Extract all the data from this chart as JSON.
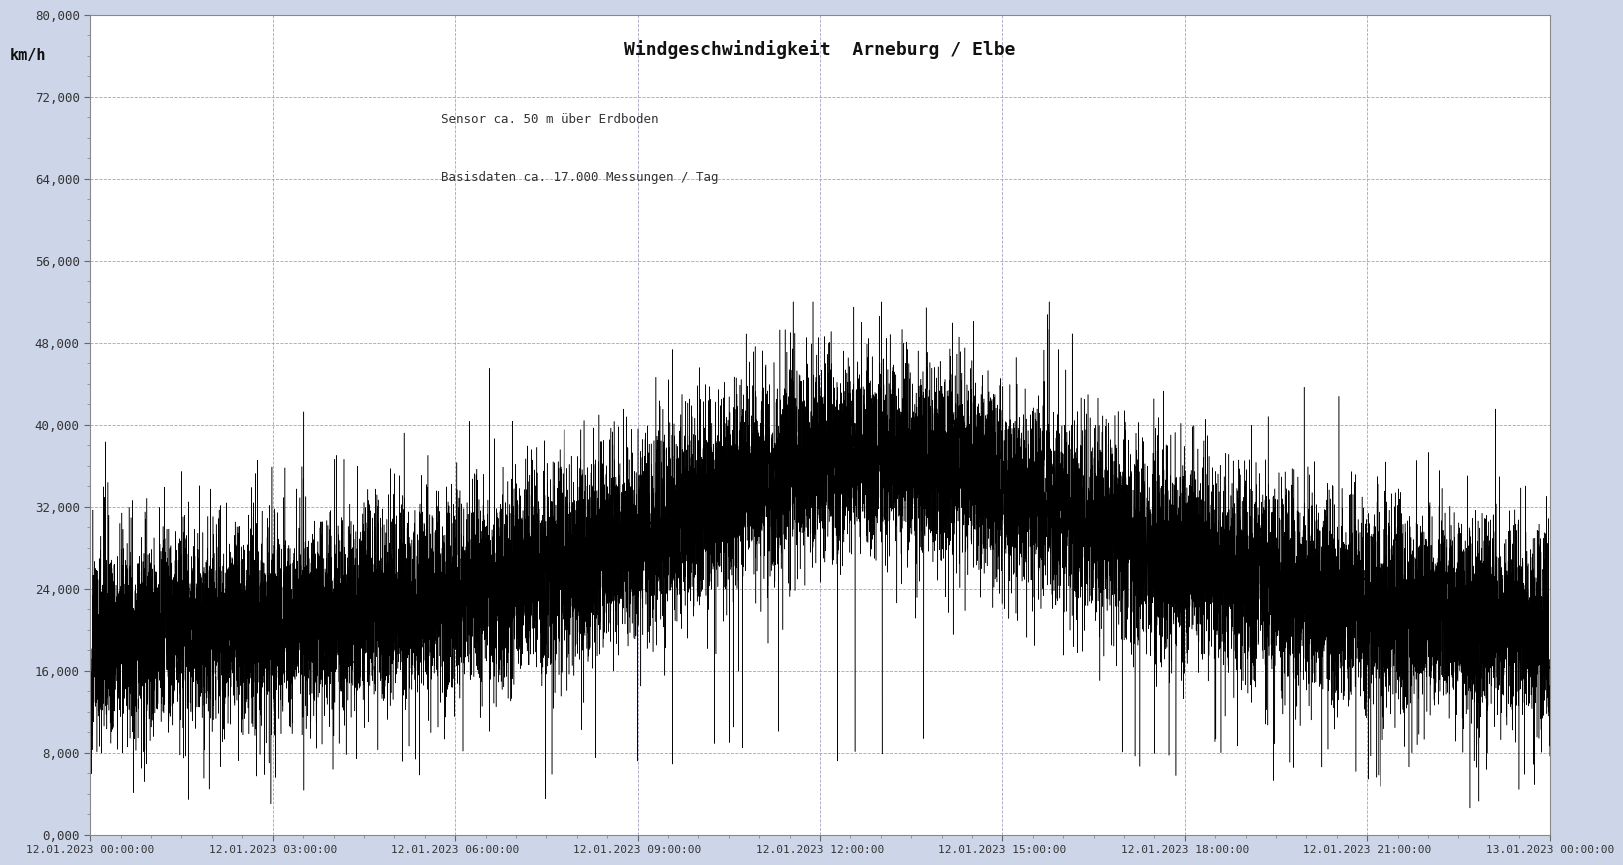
{
  "title": "Windgeschwindigkeit  Arneburg / Elbe",
  "annotation_line1": "Sensor ca. 50 m über Erdboden",
  "annotation_line2": "Basisdaten ca. 17.000 Messungen / Tag",
  "ylabel": "km/h",
  "ylim": [
    0,
    80000
  ],
  "yticks": [
    0,
    8000,
    16000,
    24000,
    32000,
    40000,
    48000,
    56000,
    64000,
    72000,
    80000
  ],
  "ytick_labels": [
    "0,000",
    "8,000",
    "16,000",
    "24,000",
    "32,000",
    "40,000",
    "48,000",
    "56,000",
    "64,000",
    "72,000",
    "80,000"
  ],
  "xtick_labels": [
    "12.01.2023 00:00:00",
    "12.01.2023 03:00:00",
    "12.01.2023 06:00:00",
    "12.01.2023 09:00:00",
    "12.01.2023 12:00:00",
    "12.01.2023 15:00:00",
    "12.01.2023 18:00:00",
    "12.01.2023 21:00:00",
    "13.01.2023 00:00:00"
  ],
  "num_points": 17280,
  "figure_bg_color": "#cdd6e8",
  "plot_bg_color": "#ffffff",
  "line_color": "#000000",
  "grid_color": "#9999bb",
  "title_fontsize": 13,
  "annotation_fontsize": 9,
  "ylabel_fontsize": 11,
  "ytick_fontsize": 9,
  "xtick_fontsize": 8
}
